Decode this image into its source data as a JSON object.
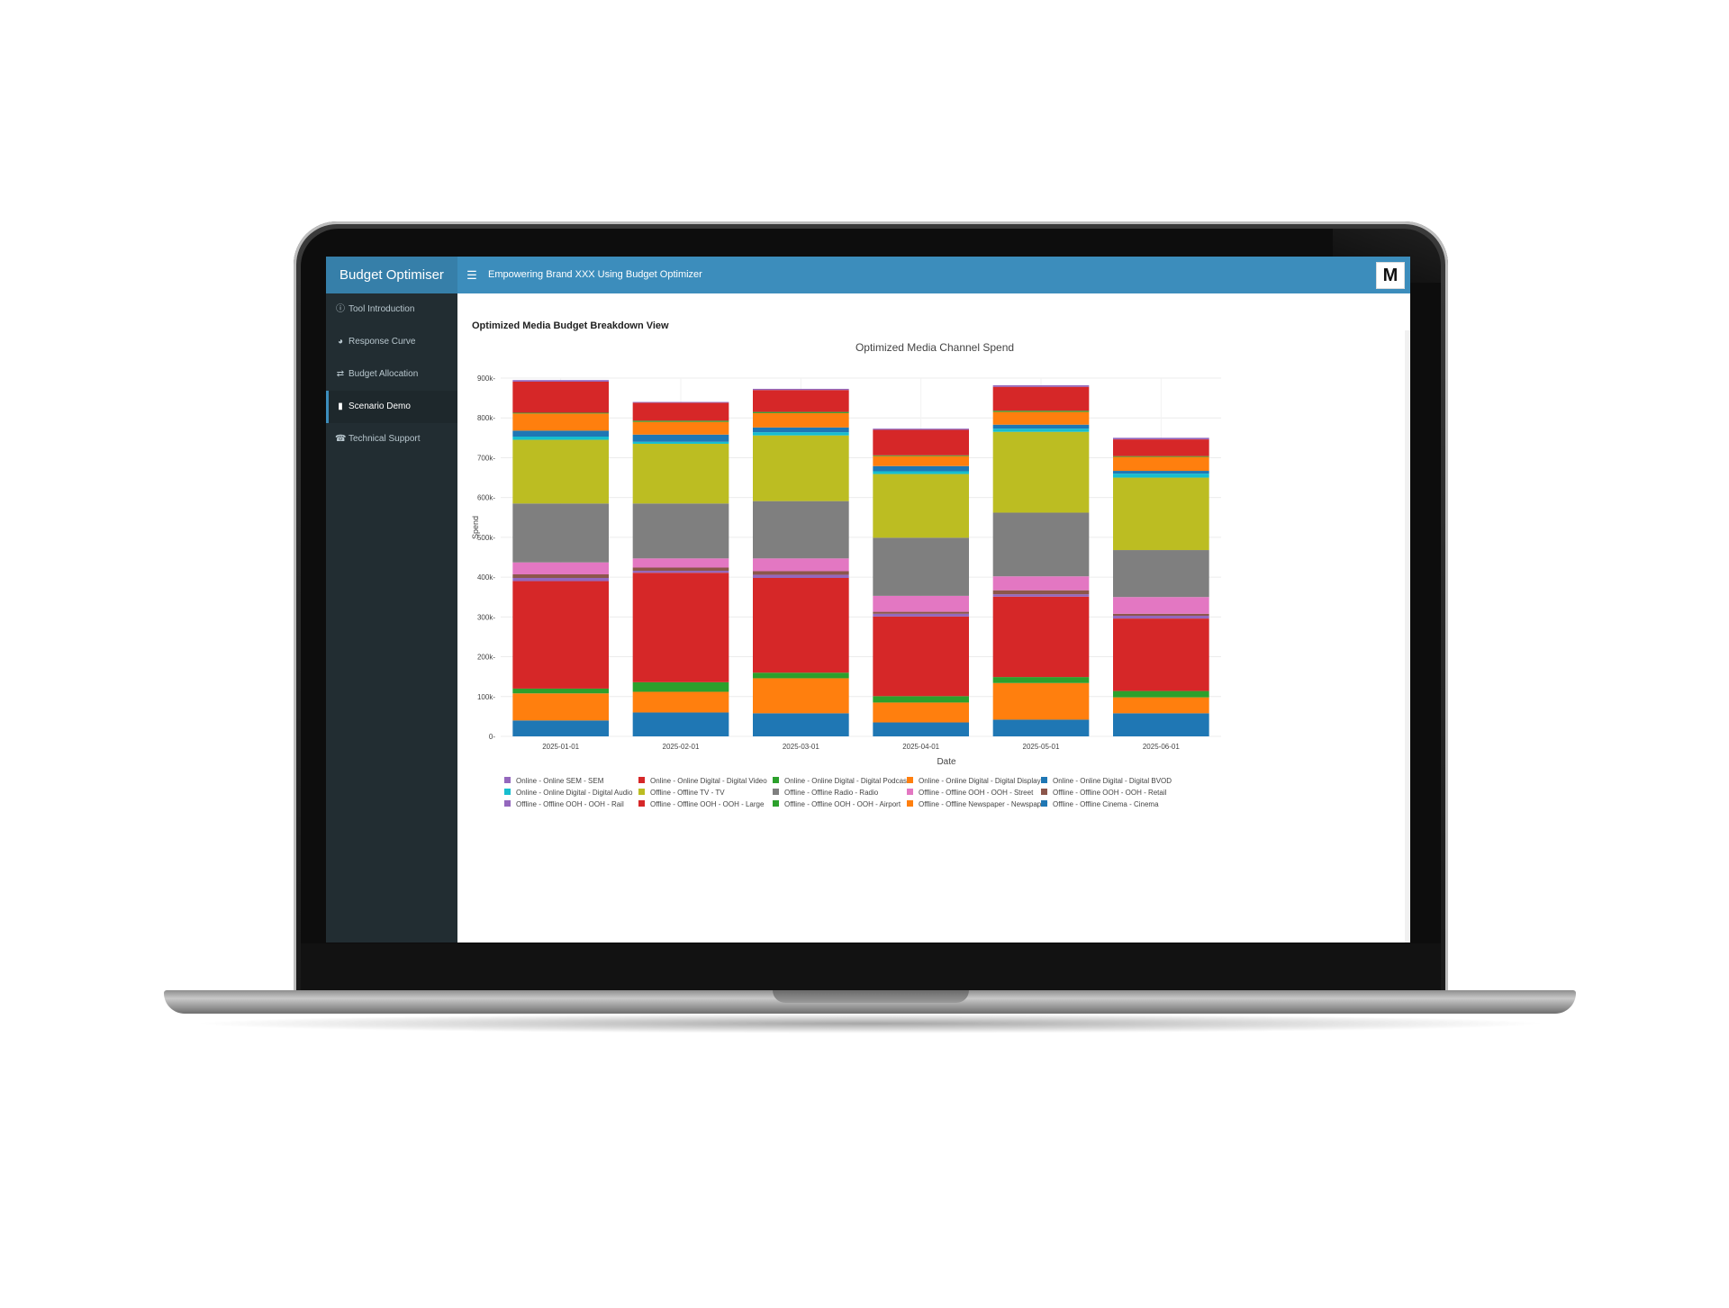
{
  "app": {
    "brand": "Budget Optimiser",
    "header_title": "Empowering Brand XXX Using Budget Optimizer",
    "logo_text": "M"
  },
  "sidebar": {
    "items": [
      {
        "label": "Tool Introduction",
        "icon": "question-circle-icon",
        "active": false
      },
      {
        "label": "Response Curve",
        "icon": "pie-chart-icon",
        "active": false
      },
      {
        "label": "Budget Allocation",
        "icon": "random-icon",
        "active": false
      },
      {
        "label": "Scenario Demo",
        "icon": "tablet-icon",
        "active": true
      },
      {
        "label": "Technical Support",
        "icon": "phone-icon",
        "active": false
      }
    ]
  },
  "main": {
    "section_title": "Optimized Media Budget Breakdown View"
  },
  "chart_data": {
    "type": "bar",
    "stacked": true,
    "title": "Optimized Media Channel Spend",
    "xlabel": "Date",
    "ylabel": "Spend",
    "ylim": [
      0,
      900000
    ],
    "yticks": [
      "0",
      "100k",
      "200k",
      "300k",
      "400k",
      "500k",
      "600k",
      "700k",
      "800k",
      "900k"
    ],
    "grid": true,
    "legend_position": "bottom",
    "categories": [
      "2025-01-01",
      "2025-02-01",
      "2025-03-01",
      "2025-04-01",
      "2025-05-01",
      "2025-06-01"
    ],
    "series": [
      {
        "name": "Offline - Offline Cinema - Cinema",
        "color": "#1f77b4",
        "values": [
          40000,
          60000,
          58000,
          35000,
          42000,
          58000
        ]
      },
      {
        "name": "Offline - Offline Newspaper - Newspaper",
        "color": "#ff7f0e",
        "values": [
          68000,
          52000,
          88000,
          50000,
          92000,
          40000
        ]
      },
      {
        "name": "Offline - Offline OOH - OOH - Airport",
        "color": "#2ca02c",
        "values": [
          12000,
          24000,
          14000,
          16000,
          15000,
          16000
        ]
      },
      {
        "name": "Offline - Offline OOH - OOH - Large",
        "color": "#d62728",
        "values": [
          270000,
          275000,
          238000,
          200000,
          202000,
          182000
        ]
      },
      {
        "name": "Offline - Offline OOH - OOH - Rail",
        "color": "#9467bd",
        "values": [
          8000,
          5000,
          8000,
          7000,
          6000,
          7000
        ]
      },
      {
        "name": "Offline - Offline OOH - OOH - Retail",
        "color": "#8c564b",
        "values": [
          9000,
          8000,
          9000,
          5000,
          10000,
          5000
        ]
      },
      {
        "name": "Offline - Offline OOH - OOH - Street",
        "color": "#e377c2",
        "values": [
          30000,
          23000,
          32000,
          40000,
          35000,
          42000
        ]
      },
      {
        "name": "Offline - Offline Radio - Radio",
        "color": "#7f7f7f",
        "values": [
          148000,
          138000,
          144000,
          146000,
          160000,
          118000
        ]
      },
      {
        "name": "Offline - Offline TV - TV",
        "color": "#bcbd22",
        "values": [
          160000,
          150000,
          165000,
          160000,
          203000,
          182000
        ]
      },
      {
        "name": "Online - Online Digital - Digital Audio",
        "color": "#17becf",
        "values": [
          8000,
          5000,
          8000,
          7000,
          8000,
          10000
        ]
      },
      {
        "name": "Online - Online Digital - Digital BVOD",
        "color": "#1f77b4",
        "values": [
          15000,
          18000,
          12000,
          13000,
          10000,
          7000
        ]
      },
      {
        "name": "Online - Online Digital - Digital Display",
        "color": "#ff7f0e",
        "values": [
          43000,
          32000,
          36000,
          25000,
          32000,
          35000
        ]
      },
      {
        "name": "Online - Online Digital - Digital Podcast",
        "color": "#2ca02c",
        "values": [
          2000,
          3000,
          3000,
          2000,
          3000,
          2000
        ]
      },
      {
        "name": "Online - Online Digital - Digital Video",
        "color": "#d62728",
        "values": [
          78000,
          45000,
          55000,
          64000,
          60000,
          42000
        ]
      },
      {
        "name": "Online - Online SEM - SEM",
        "color": "#9467bd",
        "values": [
          4000,
          2000,
          3000,
          3000,
          4000,
          4000
        ]
      }
    ],
    "legend_order": [
      "Online - Online SEM - SEM",
      "Online - Online Digital - Digital Video",
      "Online - Online Digital - Digital Podcast",
      "Online - Online Digital - Digital Display",
      "Online - Online Digital - Digital BVOD",
      "Online - Online Digital - Digital Audio",
      "Offline - Offline TV - TV",
      "Offline - Offline Radio - Radio",
      "Offline - Offline OOH - OOH - Street",
      "Offline - Offline OOH - OOH - Retail",
      "Offline - Offline OOH - OOH - Rail",
      "Offline - Offline OOH - OOH - Large",
      "Offline - Offline OOH - OOH - Airport",
      "Offline - Offline Newspaper - Newspaper",
      "Offline - Offline Cinema - Cinema"
    ]
  }
}
